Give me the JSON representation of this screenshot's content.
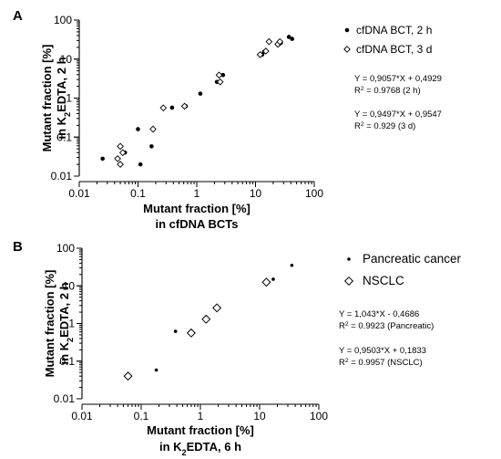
{
  "chart_data": [
    {
      "panel": "A",
      "type": "scatter",
      "xlabel": [
        "Mutant fraction [%]",
        "in cfDNA BCTs"
      ],
      "ylabel": [
        "Mutant fraction [%]",
        "in K2EDTA, 2 h"
      ],
      "xscale": "log",
      "yscale": "log",
      "xlim": [
        0.01,
        100
      ],
      "ylim": [
        0.01,
        100
      ],
      "x_ticks": [
        "0.01",
        "0.1",
        "1",
        "10",
        "100"
      ],
      "y_ticks": [
        "0.01",
        "0.1",
        "1",
        "10",
        "100"
      ],
      "legend_position": "right",
      "series": [
        {
          "name": "cfDNA BCT, 2 h",
          "marker": "filled-circle",
          "color": "#000000",
          "points": [
            [
              0.025,
              0.028
            ],
            [
              0.06,
              0.04
            ],
            [
              0.1,
              0.16
            ],
            [
              0.11,
              0.02
            ],
            [
              0.17,
              0.058
            ],
            [
              0.38,
              0.57
            ],
            [
              0.65,
              0.62
            ],
            [
              1.15,
              1.3
            ],
            [
              2.2,
              2.6
            ],
            [
              2.8,
              3.9
            ],
            [
              13,
              13
            ],
            [
              14,
              15.5
            ],
            [
              25,
              24
            ],
            [
              27,
              26
            ],
            [
              37,
              37
            ],
            [
              42,
              33
            ]
          ]
        },
        {
          "name": "cfDNA BCT, 3 d",
          "marker": "open-diamond",
          "color": "#000000",
          "points": [
            [
              0.045,
              0.028
            ],
            [
              0.05,
              0.02
            ],
            [
              0.05,
              0.058
            ],
            [
              0.055,
              0.04
            ],
            [
              0.18,
              0.16
            ],
            [
              0.27,
              0.56
            ],
            [
              0.62,
              0.62
            ],
            [
              2.4,
              3.9
            ],
            [
              2.5,
              2.6
            ],
            [
              12,
              13
            ],
            [
              15,
              16
            ],
            [
              17,
              28
            ],
            [
              24,
              24
            ],
            [
              26,
              28
            ]
          ]
        }
      ],
      "annotations": [
        [
          "Y = 0,9057*X + 0,4929",
          "R2 = 0.9768 (2 h)"
        ],
        [
          "Y = 0,9497*X + 0,9547",
          "R2 = 0.929  (3 d)"
        ]
      ]
    },
    {
      "panel": "B",
      "type": "scatter",
      "xlabel": [
        "Mutant fraction [%]",
        "in K2EDTA, 6 h"
      ],
      "ylabel": [
        "Mutant fraction [%]",
        "in K2EDTA, 2 h"
      ],
      "xscale": "log",
      "yscale": "log",
      "xlim": [
        0.01,
        100
      ],
      "ylim": [
        0.01,
        100
      ],
      "x_ticks": [
        "0.01",
        "0.1",
        "1",
        "10",
        "100"
      ],
      "y_ticks": [
        "0.01",
        "0.1",
        "1",
        "10",
        "100"
      ],
      "legend_position": "right",
      "series": [
        {
          "name": "Pancreatic cancer",
          "marker": "filled-dot",
          "color": "#000000",
          "points": [
            [
              0.18,
              0.058
            ],
            [
              0.38,
              0.62
            ],
            [
              17,
              15
            ],
            [
              35,
              35
            ]
          ]
        },
        {
          "name": "NSCLC",
          "marker": "open-diamond",
          "color": "#000000",
          "points": [
            [
              0.06,
              0.04
            ],
            [
              0.7,
              0.56
            ],
            [
              1.25,
              1.3
            ],
            [
              1.9,
              2.6
            ],
            [
              13,
              12.5
            ]
          ]
        }
      ],
      "annotations": [
        [
          "Y = 1,043*X - 0,4686",
          "R2 = 0.9923 (Pancreatic)"
        ],
        [
          "Y = 0,9503*X + 0,1833",
          "R2 = 0.9957  (NSCLC)"
        ]
      ]
    }
  ]
}
